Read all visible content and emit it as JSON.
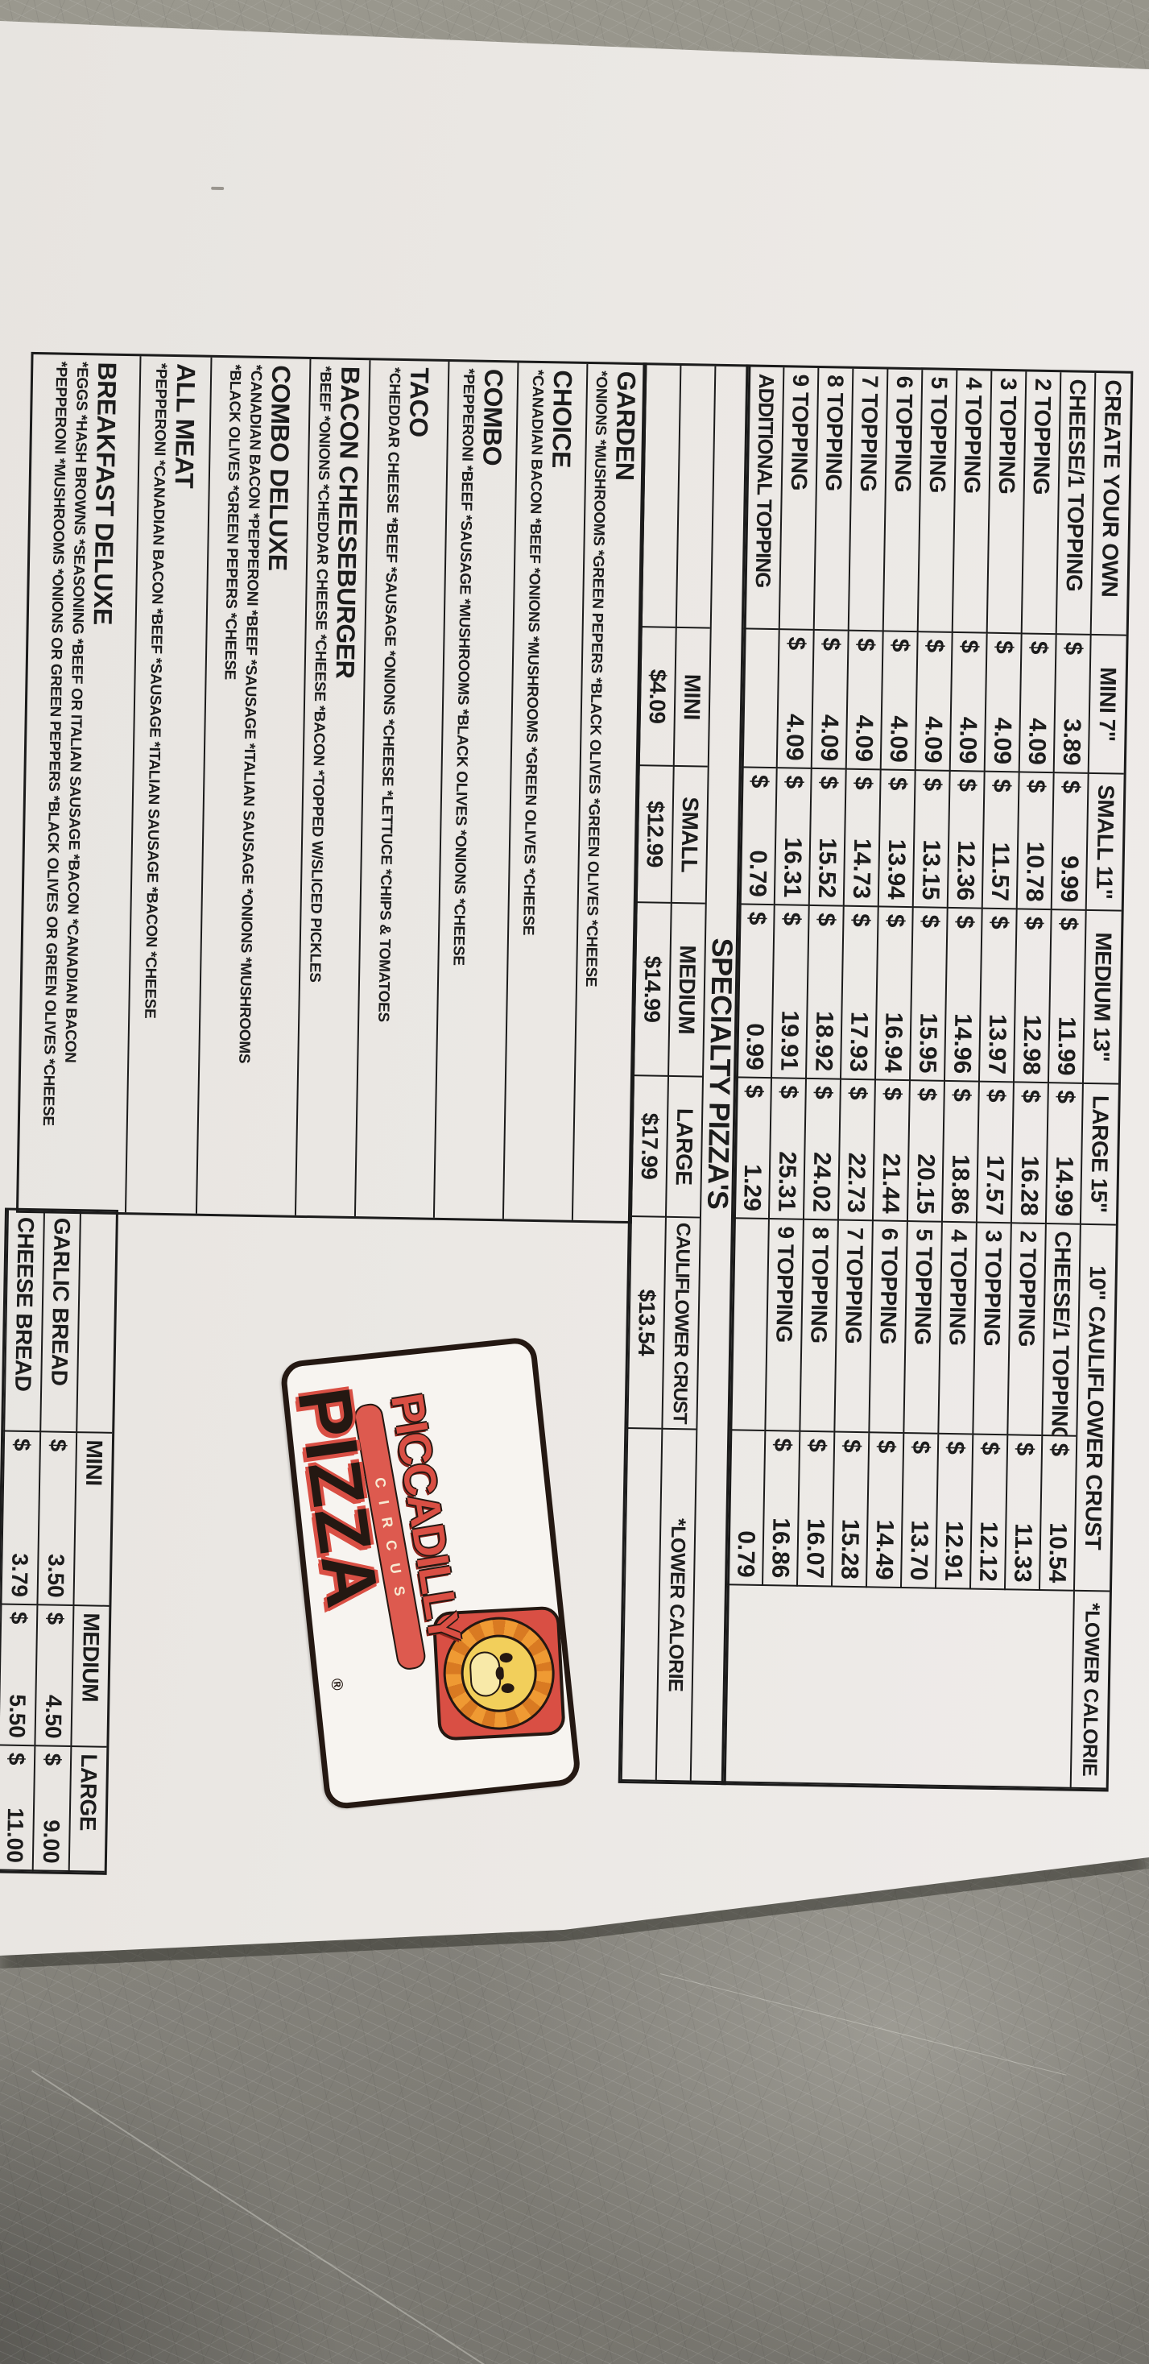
{
  "currency": "$",
  "create": {
    "title": "CREATE YOUR OWN",
    "size_headers": [
      "MINI 7\"",
      "SMALL 11\"",
      "MEDIUM 13\"",
      "LARGE 15\""
    ],
    "rows": [
      {
        "label": "CHEESE/1 TOPPING",
        "mini": "3.89",
        "small": "9.99",
        "medium": "11.99",
        "large": "14.99"
      },
      {
        "label": "2 TOPPING",
        "mini": "4.09",
        "small": "10.78",
        "medium": "12.98",
        "large": "16.28"
      },
      {
        "label": "3 TOPPING",
        "mini": "4.09",
        "small": "11.57",
        "medium": "13.97",
        "large": "17.57"
      },
      {
        "label": "4 TOPPING",
        "mini": "4.09",
        "small": "12.36",
        "medium": "14.96",
        "large": "18.86"
      },
      {
        "label": "5 TOPPING",
        "mini": "4.09",
        "small": "13.15",
        "medium": "15.95",
        "large": "20.15"
      },
      {
        "label": "6 TOPPING",
        "mini": "4.09",
        "small": "13.94",
        "medium": "16.94",
        "large": "21.44"
      },
      {
        "label": "7 TOPPING",
        "mini": "4.09",
        "small": "14.73",
        "medium": "17.93",
        "large": "22.73"
      },
      {
        "label": "8 TOPPING",
        "mini": "4.09",
        "small": "15.52",
        "medium": "18.92",
        "large": "24.02"
      },
      {
        "label": "9 TOPPING",
        "mini": "4.09",
        "small": "16.31",
        "medium": "19.91",
        "large": "25.31"
      },
      {
        "label": "ADDITIONAL TOPPING",
        "small": "0.79",
        "medium": "0.99",
        "large": "1.29"
      }
    ]
  },
  "cauliflower": {
    "header": "10\" CAULIFLOWER CRUST",
    "subheader": "*LOWER CALORIE",
    "rows": [
      {
        "label": "CHEESE/1 TOPPING",
        "price": "10.54"
      },
      {
        "label": "2 TOPPING",
        "price": "11.33"
      },
      {
        "label": "3 TOPPING",
        "price": "12.12"
      },
      {
        "label": "4 TOPPING",
        "price": "12.91"
      },
      {
        "label": "5 TOPPING",
        "price": "13.70"
      },
      {
        "label": "6 TOPPING",
        "price": "14.49"
      },
      {
        "label": "7 TOPPING",
        "price": "15.28"
      },
      {
        "label": "8 TOPPING",
        "price": "16.07"
      },
      {
        "label": "9 TOPPING",
        "price": "16.86"
      },
      {
        "label": "",
        "price": "0.79"
      }
    ]
  },
  "specialty": {
    "banner": "SPECIALTY PIZZA'S",
    "headers": [
      "MINI",
      "SMALL",
      "MEDIUM",
      "LARGE",
      "CAULIFLOWER CRUST",
      "*LOWER CALORIE"
    ],
    "prices": [
      "$4.09",
      "$12.99",
      "$14.99",
      "$17.99",
      "$13.54"
    ],
    "sections": [
      {
        "name": "GARDEN",
        "desc1": "*ONIONS *MUSHROOMS *GREEN PEPERS *BLACK OLIVES *GREEN OLIVES *CHEESE"
      },
      {
        "name": "CHOICE",
        "desc1": "*CANADIAN BACON *BEEF *ONIONS *MUSHROOMS *GREEN OLIVES *CHEESE"
      },
      {
        "name": "COMBO",
        "desc1": "*PEPPERONI *BEEF *SAUSAGE *MUSHROOMS *BLACK OLIVES *ONIONS *CHEESE"
      },
      {
        "name": "TACO",
        "desc1": "*CHEDDAR CHEESE *BEEF *SAUSAGE *ONIONS *CHEESE *LETTUCE *CHIPS & TOMATOES"
      },
      {
        "name": "BACON CHEESEBURGER",
        "desc1": "*BEEF *ONIONS *CHEDDAR CHEESE *CHEESE *BACON *TOPPED W/SLICED PICKLES"
      },
      {
        "name": "COMBO DELUXE",
        "desc1": "*CANADIAN BACON *PEPPERONI *BEEF *SAUSAGE *ITALIAN SAUSAGE *ONIONS *MUSHROOMS",
        "desc2": "*BLACK OLIVES *GREEN PEPERS *CHEESE"
      },
      {
        "name": "ALL MEAT",
        "desc1": "*PEPPERONI *CANADIAN BACON *BEEF *SAUSAGE *ITALIAN SAUSAGE *BACON *CHEESE"
      },
      {
        "name": "BREAKFAST DELUXE",
        "desc1": "*EGGS *HASH BROWNS *SEASONING *BEEF OR ITALIAN SAUSAGE *BACON *CANADIAN BACON",
        "desc2": "*PEPPERONI *MUSHROOMS *ONIONS OR GREEN PEPPERS *BLACK OLIVES OR GREEN OLIVES *CHEESE"
      }
    ]
  },
  "bread": {
    "size_headers": [
      "MINI",
      "MEDIUM",
      "LARGE"
    ],
    "rows": [
      {
        "label": "GARLIC BREAD",
        "mini": "3.50",
        "medium": "4.50",
        "large": "9.00"
      },
      {
        "label": "CHEESE BREAD",
        "mini": "3.79",
        "medium": "5.50",
        "large": "11.00"
      }
    ]
  },
  "logo": {
    "line1": "PICCADILLY",
    "circus": "CIRCUS",
    "line2": "PIZZA",
    "reg": "®"
  },
  "colors": {
    "logo_red": "#d94f44",
    "paper": "#e9e6e2",
    "metal": "#8f8c84",
    "ink": "#1b1b1b"
  }
}
